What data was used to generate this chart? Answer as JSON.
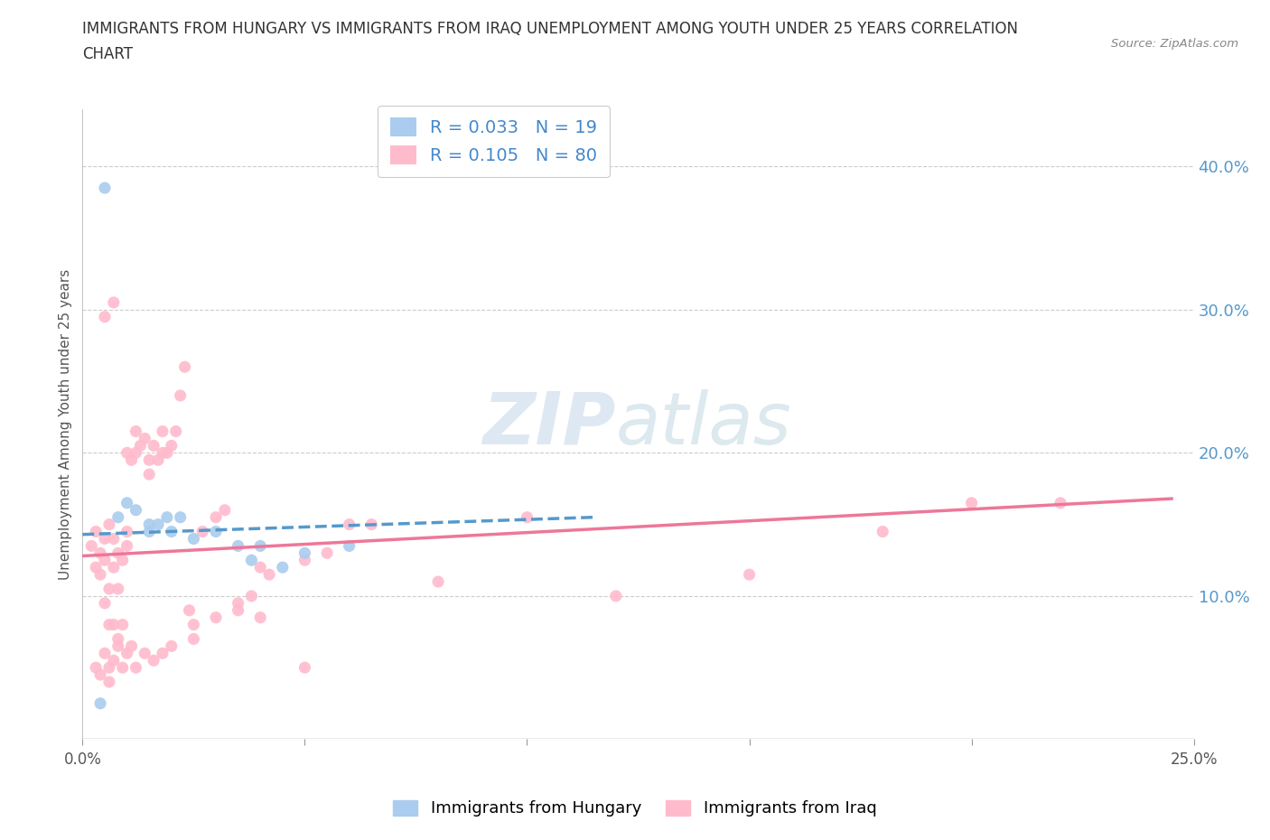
{
  "title_line1": "IMMIGRANTS FROM HUNGARY VS IMMIGRANTS FROM IRAQ UNEMPLOYMENT AMONG YOUTH UNDER 25 YEARS CORRELATION",
  "title_line2": "CHART",
  "source_text": "Source: ZipAtlas.com",
  "ylabel": "Unemployment Among Youth under 25 years",
  "xlim": [
    0.0,
    0.25
  ],
  "ylim": [
    0.0,
    0.44
  ],
  "xticks": [
    0.0,
    0.05,
    0.1,
    0.15,
    0.2,
    0.25
  ],
  "yticks": [
    0.1,
    0.2,
    0.3,
    0.4
  ],
  "xtick_labels": [
    "0.0%",
    "",
    "",
    "",
    "",
    "25.0%"
  ],
  "ytick_labels_right": [
    "10.0%",
    "20.0%",
    "30.0%",
    "40.0%"
  ],
  "hungary_color": "#aaccee",
  "iraq_color": "#ffbbcc",
  "hungary_line_color": "#5599cc",
  "iraq_line_color": "#ee7799",
  "hungary_R": 0.033,
  "hungary_N": 19,
  "iraq_R": 0.105,
  "iraq_N": 80,
  "background_color": "#ffffff",
  "grid_color": "#cccccc",
  "hungary_scatter_x": [
    0.005,
    0.008,
    0.01,
    0.012,
    0.015,
    0.015,
    0.017,
    0.019,
    0.02,
    0.022,
    0.025,
    0.03,
    0.035,
    0.038,
    0.04,
    0.045,
    0.05,
    0.06,
    0.004
  ],
  "hungary_scatter_y": [
    0.385,
    0.155,
    0.165,
    0.16,
    0.15,
    0.145,
    0.15,
    0.155,
    0.145,
    0.155,
    0.14,
    0.145,
    0.135,
    0.125,
    0.135,
    0.12,
    0.13,
    0.135,
    0.025
  ],
  "iraq_scatter_x": [
    0.002,
    0.003,
    0.003,
    0.004,
    0.004,
    0.005,
    0.005,
    0.005,
    0.006,
    0.006,
    0.006,
    0.007,
    0.007,
    0.007,
    0.008,
    0.008,
    0.008,
    0.009,
    0.009,
    0.01,
    0.01,
    0.01,
    0.011,
    0.012,
    0.012,
    0.013,
    0.014,
    0.015,
    0.015,
    0.016,
    0.017,
    0.018,
    0.018,
    0.019,
    0.02,
    0.021,
    0.022,
    0.023,
    0.024,
    0.025,
    0.027,
    0.03,
    0.032,
    0.035,
    0.038,
    0.04,
    0.042,
    0.05,
    0.055,
    0.06,
    0.003,
    0.004,
    0.005,
    0.006,
    0.006,
    0.007,
    0.008,
    0.009,
    0.01,
    0.011,
    0.012,
    0.014,
    0.016,
    0.018,
    0.02,
    0.025,
    0.03,
    0.035,
    0.04,
    0.05,
    0.065,
    0.08,
    0.1,
    0.12,
    0.15,
    0.18,
    0.2,
    0.22,
    0.005,
    0.007
  ],
  "iraq_scatter_y": [
    0.135,
    0.145,
    0.12,
    0.115,
    0.13,
    0.14,
    0.125,
    0.095,
    0.15,
    0.105,
    0.08,
    0.14,
    0.12,
    0.08,
    0.13,
    0.105,
    0.07,
    0.125,
    0.08,
    0.135,
    0.2,
    0.145,
    0.195,
    0.215,
    0.2,
    0.205,
    0.21,
    0.195,
    0.185,
    0.205,
    0.195,
    0.2,
    0.215,
    0.2,
    0.205,
    0.215,
    0.24,
    0.26,
    0.09,
    0.08,
    0.145,
    0.155,
    0.16,
    0.095,
    0.1,
    0.12,
    0.115,
    0.125,
    0.13,
    0.15,
    0.05,
    0.045,
    0.06,
    0.05,
    0.04,
    0.055,
    0.065,
    0.05,
    0.06,
    0.065,
    0.05,
    0.06,
    0.055,
    0.06,
    0.065,
    0.07,
    0.085,
    0.09,
    0.085,
    0.05,
    0.15,
    0.11,
    0.155,
    0.1,
    0.115,
    0.145,
    0.165,
    0.165,
    0.295,
    0.305
  ],
  "hungary_line_x": [
    0.0,
    0.115
  ],
  "hungary_line_y_start": 0.143,
  "hungary_line_y_end": 0.155,
  "iraq_line_x": [
    0.0,
    0.245
  ],
  "iraq_line_y_start": 0.128,
  "iraq_line_y_end": 0.168
}
